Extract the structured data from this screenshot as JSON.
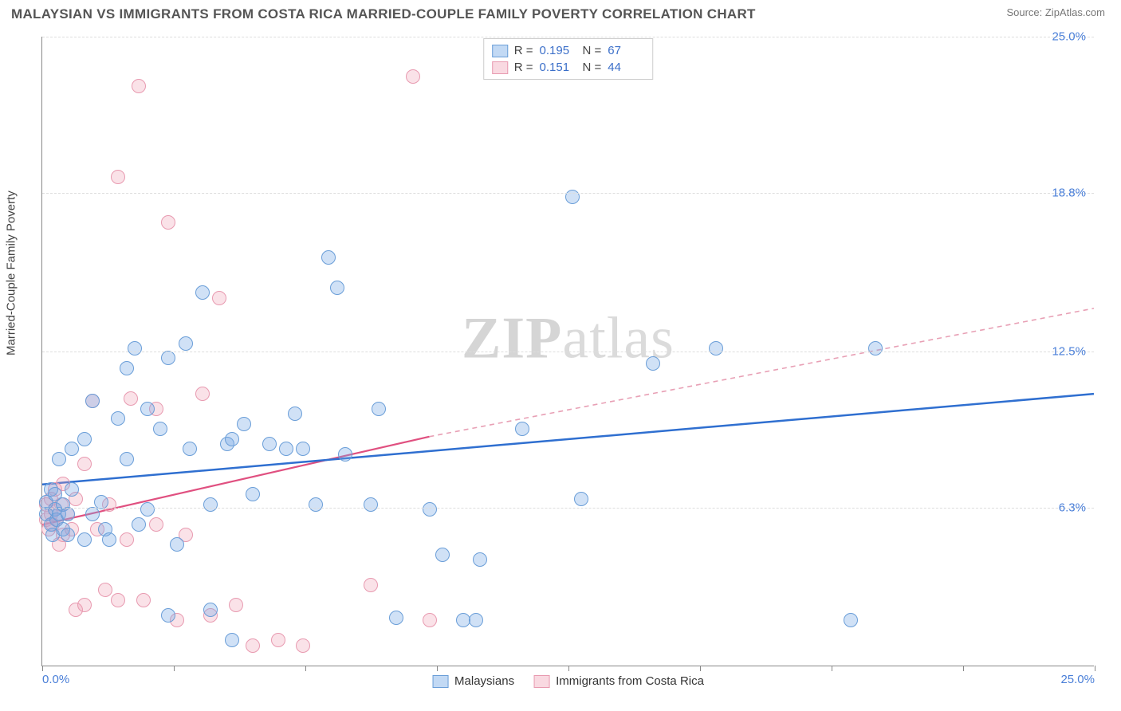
{
  "header": {
    "title": "MALAYSIAN VS IMMIGRANTS FROM COSTA RICA MARRIED-COUPLE FAMILY POVERTY CORRELATION CHART",
    "source_prefix": "Source: ",
    "source_name": "ZipAtlas.com"
  },
  "axes": {
    "y_label": "Married-Couple Family Poverty",
    "xlim": [
      0,
      25
    ],
    "ylim": [
      0,
      25
    ],
    "x_ticks": [
      0,
      3.125,
      6.25,
      9.375,
      12.5,
      15.625,
      18.75,
      21.875,
      25
    ],
    "x_tick_labels": {
      "0": "0.0%",
      "25": "25.0%"
    },
    "y_grid": [
      6.3,
      12.5,
      18.8,
      25.0
    ],
    "y_tick_labels": [
      "6.3%",
      "12.5%",
      "18.8%",
      "25.0%"
    ]
  },
  "legend_top": {
    "rows": [
      {
        "swatch": "blue",
        "r_label": "R =",
        "r": "0.195",
        "n_label": "N =",
        "n": "67"
      },
      {
        "swatch": "pink",
        "r_label": "R =",
        "r": "0.151",
        "n_label": "N =",
        "n": "44"
      }
    ]
  },
  "legend_bottom": {
    "items": [
      {
        "swatch": "blue",
        "label": "Malaysians"
      },
      {
        "swatch": "pink",
        "label": "Immigrants from Costa Rica"
      }
    ]
  },
  "watermark": {
    "zip": "ZIP",
    "atlas": "atlas"
  },
  "series": {
    "blue": {
      "color_fill": "rgba(120,170,230,0.35)",
      "color_stroke": "#6a9ed8",
      "marker_radius": 9,
      "trend": {
        "x1": 0,
        "y1": 7.2,
        "x2": 25,
        "y2": 10.8,
        "stroke": "#2f6fd0",
        "width": 2.5,
        "dash": "none"
      },
      "points": [
        [
          0.1,
          6.0
        ],
        [
          0.1,
          6.5
        ],
        [
          0.2,
          5.6
        ],
        [
          0.2,
          7.0
        ],
        [
          0.25,
          5.2
        ],
        [
          0.3,
          6.2
        ],
        [
          0.3,
          6.8
        ],
        [
          0.35,
          5.8
        ],
        [
          0.4,
          6.0
        ],
        [
          0.4,
          8.2
        ],
        [
          0.5,
          5.4
        ],
        [
          0.5,
          6.4
        ],
        [
          0.6,
          5.2
        ],
        [
          0.6,
          6.0
        ],
        [
          0.7,
          7.0
        ],
        [
          0.7,
          8.6
        ],
        [
          1.0,
          9.0
        ],
        [
          1.0,
          5.0
        ],
        [
          1.2,
          6.0
        ],
        [
          1.2,
          10.5
        ],
        [
          1.4,
          6.5
        ],
        [
          1.5,
          5.4
        ],
        [
          1.6,
          5.0
        ],
        [
          1.8,
          9.8
        ],
        [
          2.0,
          11.8
        ],
        [
          2.0,
          8.2
        ],
        [
          2.2,
          12.6
        ],
        [
          2.3,
          5.6
        ],
        [
          2.5,
          6.2
        ],
        [
          2.5,
          10.2
        ],
        [
          2.8,
          9.4
        ],
        [
          3.0,
          12.2
        ],
        [
          3.0,
          2.0
        ],
        [
          3.2,
          4.8
        ],
        [
          3.4,
          12.8
        ],
        [
          3.5,
          8.6
        ],
        [
          3.8,
          14.8
        ],
        [
          4.0,
          6.4
        ],
        [
          4.0,
          2.2
        ],
        [
          4.4,
          8.8
        ],
        [
          4.5,
          1.0
        ],
        [
          4.5,
          9.0
        ],
        [
          4.8,
          9.6
        ],
        [
          5.0,
          6.8
        ],
        [
          5.4,
          8.8
        ],
        [
          5.8,
          8.6
        ],
        [
          6.0,
          10.0
        ],
        [
          6.2,
          8.6
        ],
        [
          6.5,
          6.4
        ],
        [
          6.8,
          16.2
        ],
        [
          7.0,
          15.0
        ],
        [
          7.2,
          8.4
        ],
        [
          7.8,
          6.4
        ],
        [
          8.0,
          10.2
        ],
        [
          8.4,
          1.9
        ],
        [
          9.2,
          6.2
        ],
        [
          9.5,
          4.4
        ],
        [
          10.0,
          1.8
        ],
        [
          10.3,
          1.8
        ],
        [
          10.4,
          4.2
        ],
        [
          11.4,
          9.4
        ],
        [
          12.6,
          18.6
        ],
        [
          12.8,
          6.6
        ],
        [
          14.5,
          12.0
        ],
        [
          16.0,
          12.6
        ],
        [
          19.2,
          1.8
        ],
        [
          19.8,
          12.6
        ]
      ]
    },
    "pink": {
      "color_fill": "rgba(240,160,180,0.30)",
      "color_stroke": "#e89ab0",
      "marker_radius": 9,
      "trend_solid": {
        "x1": 0,
        "y1": 5.6,
        "x2": 9.2,
        "y2": 9.1,
        "stroke": "#e05080",
        "width": 2.2
      },
      "trend_dash": {
        "x1": 9.2,
        "y1": 9.1,
        "x2": 25,
        "y2": 14.2,
        "stroke": "#e8a0b5",
        "width": 1.6,
        "dash": "6 5"
      },
      "points": [
        [
          0.1,
          5.8
        ],
        [
          0.1,
          6.4
        ],
        [
          0.15,
          5.4
        ],
        [
          0.2,
          6.0
        ],
        [
          0.2,
          6.6
        ],
        [
          0.25,
          5.6
        ],
        [
          0.3,
          7.0
        ],
        [
          0.3,
          6.2
        ],
        [
          0.35,
          5.8
        ],
        [
          0.4,
          4.8
        ],
        [
          0.45,
          6.4
        ],
        [
          0.5,
          5.2
        ],
        [
          0.5,
          7.2
        ],
        [
          0.6,
          6.0
        ],
        [
          0.7,
          5.4
        ],
        [
          0.8,
          6.6
        ],
        [
          0.8,
          2.2
        ],
        [
          1.0,
          8.0
        ],
        [
          1.0,
          2.4
        ],
        [
          1.2,
          10.5
        ],
        [
          1.3,
          5.4
        ],
        [
          1.5,
          3.0
        ],
        [
          1.6,
          6.4
        ],
        [
          1.8,
          2.6
        ],
        [
          1.8,
          19.4
        ],
        [
          2.0,
          5.0
        ],
        [
          2.1,
          10.6
        ],
        [
          2.3,
          23.0
        ],
        [
          2.4,
          2.6
        ],
        [
          2.7,
          5.6
        ],
        [
          2.7,
          10.2
        ],
        [
          3.0,
          17.6
        ],
        [
          3.2,
          1.8
        ],
        [
          3.4,
          5.2
        ],
        [
          3.8,
          10.8
        ],
        [
          4.0,
          2.0
        ],
        [
          4.2,
          14.6
        ],
        [
          4.6,
          2.4
        ],
        [
          5.0,
          0.8
        ],
        [
          5.6,
          1.0
        ],
        [
          6.2,
          0.8
        ],
        [
          7.8,
          3.2
        ],
        [
          9.2,
          1.8
        ],
        [
          8.8,
          23.4
        ]
      ]
    }
  }
}
